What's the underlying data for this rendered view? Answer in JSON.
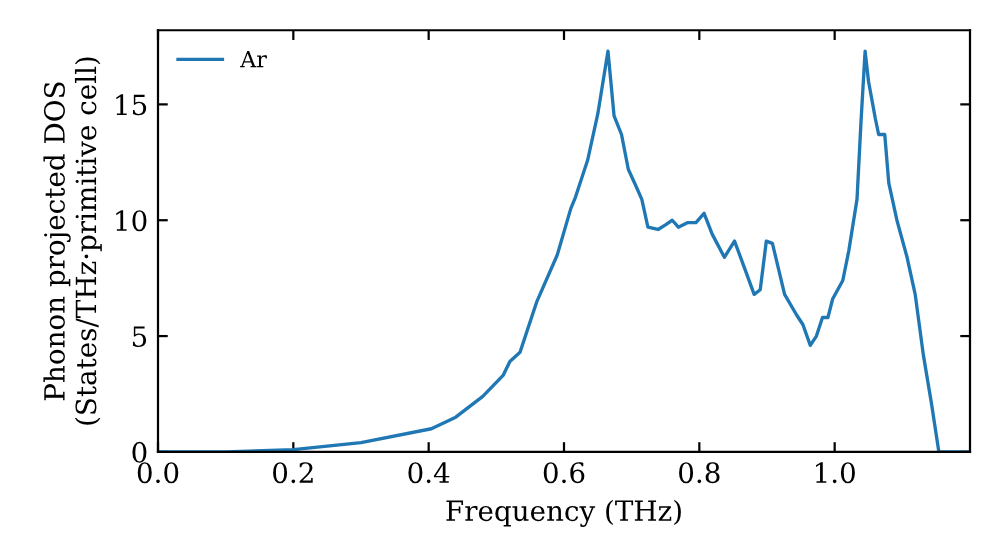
{
  "chart_data": {
    "type": "line",
    "xlabel": "Frequency (THz)",
    "ylabel": "Phonon projected DOS\n(States/THz·primitive cell)",
    "xlim": [
      0,
      1.2
    ],
    "ylim": [
      0,
      18.2
    ],
    "xticks": [
      {
        "value": 0,
        "label": "0.0"
      },
      0.2,
      0.4,
      0.6,
      0.8,
      {
        "value": 1,
        "label": "1.0"
      }
    ],
    "yticks": [
      0,
      5,
      10,
      15
    ],
    "legend": "top left",
    "grid": false,
    "series": [
      {
        "name": "Ar",
        "color": "#1f77b4",
        "x": [
          0,
          0.1,
          0.2,
          0.3,
          0.404,
          0.44,
          0.48,
          0.51,
          0.52,
          0.535,
          0.56,
          0.59,
          0.61,
          0.617,
          0.635,
          0.65,
          0.665,
          0.674,
          0.685,
          0.695,
          0.706,
          0.715,
          0.724,
          0.739,
          0.75,
          0.76,
          0.769,
          0.783,
          0.795,
          0.807,
          0.819,
          0.837,
          0.852,
          0.866,
          0.881,
          0.89,
          0.899,
          0.908,
          0.926,
          0.944,
          0.953,
          0.964,
          0.973,
          0.982,
          0.99,
          0.997,
          1.012,
          1.021,
          1.033,
          1.039,
          1.045,
          1.05,
          1.06,
          1.065,
          1.074,
          1.08,
          1.092,
          1.107,
          1.119,
          1.131,
          1.143,
          1.154,
          1.2
        ],
        "values": [
          0,
          0.0,
          0.1,
          0.4,
          1.0,
          1.5,
          2.4,
          3.3,
          3.9,
          4.3,
          6.5,
          8.5,
          10.5,
          11.0,
          12.6,
          14.6,
          17.3,
          14.5,
          13.7,
          12.2,
          11.5,
          10.9,
          9.7,
          9.6,
          9.8,
          10.0,
          9.7,
          9.9,
          9.9,
          10.3,
          9.4,
          8.4,
          9.1,
          8.0,
          6.8,
          7.0,
          9.1,
          9.0,
          6.8,
          5.9,
          5.5,
          4.6,
          5.0,
          5.8,
          5.8,
          6.6,
          7.4,
          8.7,
          10.9,
          14.3,
          17.3,
          16.0,
          14.4,
          13.7,
          13.7,
          11.6,
          10.0,
          8.4,
          6.8,
          4.2,
          2.1,
          0.0,
          0.0
        ]
      }
    ]
  }
}
